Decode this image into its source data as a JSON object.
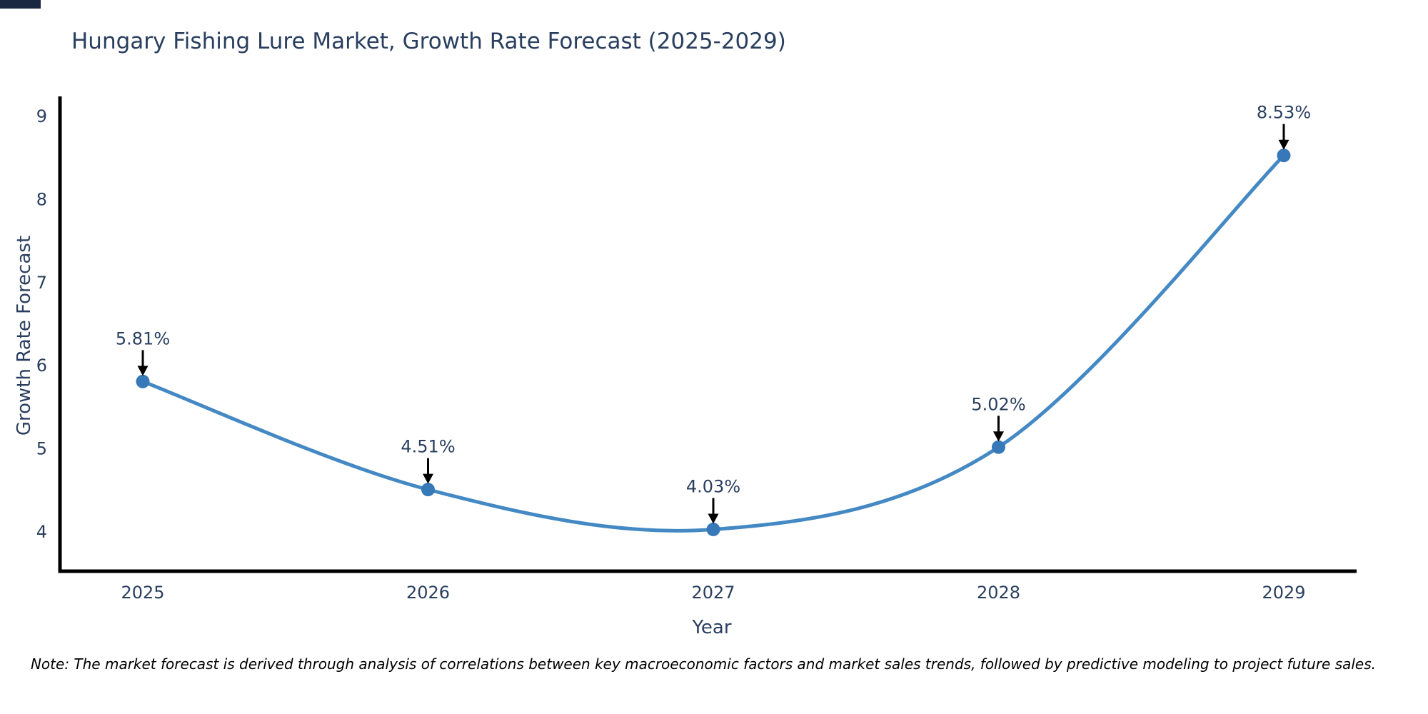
{
  "page": {
    "background": "#ffffff",
    "note": "Note: The market forecast is derived through analysis of correlations between key macroeconomic factors and market sales trends, followed by predictive modeling to project future sales."
  },
  "chart_data": {
    "type": "line",
    "title": "Hungary Fishing Lure Market, Growth Rate Forecast (2025-2029)",
    "xlabel": "Year",
    "ylabel": "Growth Rate Forecast",
    "line_shape": "spline",
    "grid": false,
    "legend": "none",
    "categories": [
      "2025",
      "2026",
      "2027",
      "2028",
      "2029"
    ],
    "series": [
      {
        "name": "Growth Rate Forecast",
        "values": [
          5.81,
          4.51,
          4.03,
          5.02,
          8.53
        ],
        "point_labels": [
          "5.81%",
          "4.51%",
          "4.03%",
          "5.02%",
          "8.53%"
        ]
      }
    ],
    "y_ticks": [
      4,
      5,
      6,
      7,
      8,
      9
    ],
    "ylim": [
      3.5,
      9.3
    ],
    "colors": {
      "line": "#4489c4",
      "marker": "#3778b8",
      "axis": "#000000",
      "arrow": "#000000",
      "text": "#2a3f5f",
      "note_text": "#000000",
      "corner_bar": "#1b2741"
    }
  }
}
